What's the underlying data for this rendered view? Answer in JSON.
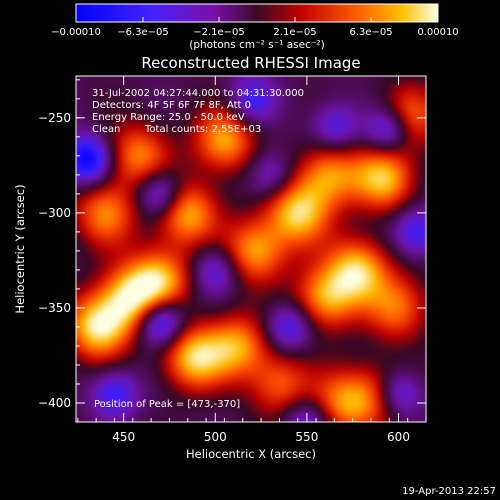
{
  "chart_data": {
    "type": "heatmap",
    "title": "Reconstructed RHESSI Image",
    "xlabel": "Heliocentric X (arcsec)",
    "ylabel": "Heliocentric Y (arcsec)",
    "xlim": [
      424,
      615
    ],
    "ylim": [
      -410,
      -228
    ],
    "xticks": [
      450,
      500,
      550,
      600
    ],
    "yticks": [
      -250,
      -300,
      -350,
      -400
    ],
    "xtick_labels": [
      "450",
      "500",
      "550",
      "600"
    ],
    "ytick_labels": [
      "−250",
      "−300",
      "−350",
      "−400"
    ],
    "colorbar": {
      "min": -0.0001,
      "max": 0.0001,
      "tick_values": [
        -0.0001,
        -6.3e-05,
        -2.1e-05,
        2.1e-05,
        6.3e-05,
        0.0001
      ],
      "tick_labels": [
        "−0.00010",
        "−6.3e−05",
        "−2.1e−05",
        "2.1e−05",
        "6.3e−05",
        "0.00010"
      ],
      "units": "(photons cm⁻² s⁻¹ asec⁻²)"
    },
    "annotations": {
      "time_range": "31-Jul-2002 04:27:44.000 to 04:31:30.000",
      "detectors": "Detectors: 4F 5F 6F 7F 8F, Att 0",
      "energy": "Energy Range: 25.0 - 50.0 keV",
      "algorithm": "Clean",
      "total_counts": "Total counts: 2.55E+03",
      "peak": "Position of Peak = [473,-370]"
    },
    "peak": {
      "x": 473,
      "y": -370
    },
    "hot_spots": [
      {
        "x": 436,
        "y": -360,
        "v": 1.0
      },
      {
        "x": 454,
        "y": -345,
        "v": 0.9
      },
      {
        "x": 488,
        "y": -376,
        "v": 0.9
      },
      {
        "x": 512,
        "y": -370,
        "v": 0.75
      },
      {
        "x": 470,
        "y": -335,
        "v": 0.8
      },
      {
        "x": 484,
        "y": -300,
        "v": 0.85
      },
      {
        "x": 505,
        "y": -262,
        "v": 0.8
      },
      {
        "x": 458,
        "y": -270,
        "v": 0.7
      },
      {
        "x": 522,
        "y": -320,
        "v": 0.8
      },
      {
        "x": 545,
        "y": -300,
        "v": 0.9
      },
      {
        "x": 562,
        "y": -280,
        "v": 0.75
      },
      {
        "x": 578,
        "y": -330,
        "v": 0.9
      },
      {
        "x": 560,
        "y": -345,
        "v": 0.8
      },
      {
        "x": 592,
        "y": -282,
        "v": 0.85
      },
      {
        "x": 604,
        "y": -250,
        "v": 0.7
      },
      {
        "x": 570,
        "y": -400,
        "v": 0.7
      },
      {
        "x": 535,
        "y": -390,
        "v": 0.6
      },
      {
        "x": 440,
        "y": -300,
        "v": 0.7
      },
      {
        "x": 600,
        "y": -350,
        "v": 0.65
      },
      {
        "x": 590,
        "y": -395,
        "v": 0.55
      }
    ],
    "cold_spots": [
      {
        "x": 430,
        "y": -272,
        "v": -0.9
      },
      {
        "x": 470,
        "y": -357,
        "v": -0.9
      },
      {
        "x": 470,
        "y": -290,
        "v": -0.7
      },
      {
        "x": 595,
        "y": -256,
        "v": -0.8
      },
      {
        "x": 600,
        "y": -395,
        "v": -0.7
      },
      {
        "x": 520,
        "y": -240,
        "v": -0.55
      },
      {
        "x": 540,
        "y": -360,
        "v": -0.6
      },
      {
        "x": 500,
        "y": -330,
        "v": -0.5
      },
      {
        "x": 445,
        "y": -395,
        "v": -0.6
      },
      {
        "x": 565,
        "y": -255,
        "v": -0.5
      },
      {
        "x": 530,
        "y": -280,
        "v": -0.45
      },
      {
        "x": 610,
        "y": -310,
        "v": -0.6
      },
      {
        "x": 550,
        "y": -410,
        "v": -0.5
      }
    ]
  },
  "footer": {
    "timestamp": "19-Apr-2013 22:57"
  }
}
